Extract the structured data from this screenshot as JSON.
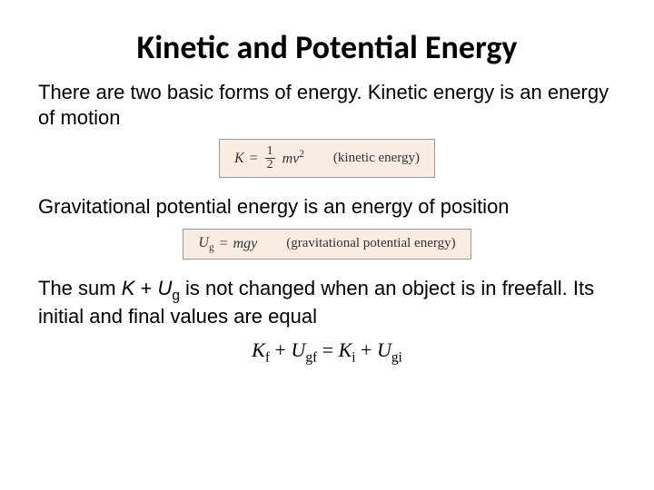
{
  "title": "Kinetic and Potential Energy",
  "para1": "There are two basic forms of energy.  Kinetic energy is an energy of motion",
  "para2": "Gravitational potential energy is an energy of position",
  "para3_a": "The sum ",
  "para3_b": " is not changed when an object is in freefall. Its initial and final values are equal",
  "sum_expr_K": "K",
  "sum_expr_plus": " + ",
  "sum_expr_U": "U",
  "sum_expr_g": "g",
  "eq1": {
    "lhs": "K",
    "op": "=",
    "frac_num": "1",
    "frac_den": "2",
    "rhs_m": "m",
    "rhs_v": "v",
    "rhs_exp": "2",
    "label": "(kinetic energy)",
    "bg": "#f9ece3"
  },
  "eq2": {
    "lhs_U": "U",
    "lhs_g": "g",
    "op": "=",
    "rhs": "mgy",
    "label": "(gravitational potential energy)",
    "bg": "#f9ece3"
  },
  "eq3": {
    "t1": "K",
    "s1": "f",
    "plus": " + ",
    "t2": "U",
    "s2": "gf",
    "eq": " = ",
    "t3": "K",
    "s3": "i",
    "t4": "U",
    "s4": "gi"
  },
  "colors": {
    "text": "#000000",
    "bg": "#ffffff",
    "box_bg": "#f9ece3",
    "box_border": "#999999"
  }
}
